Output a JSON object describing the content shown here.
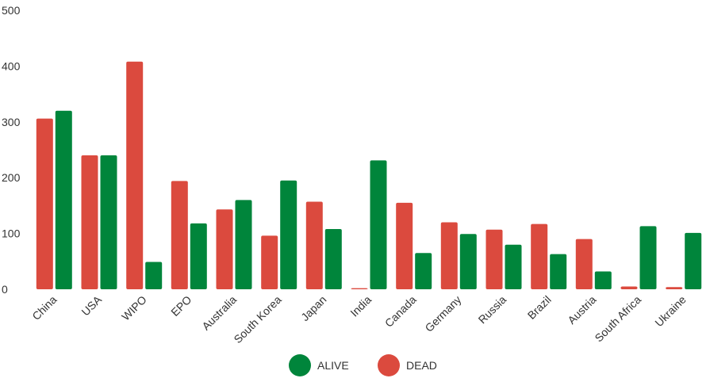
{
  "chart_data": {
    "type": "bar",
    "title": "",
    "xlabel": "",
    "ylabel": "",
    "ylim": [
      0,
      500
    ],
    "yticks": [
      0,
      100,
      200,
      300,
      400,
      500
    ],
    "grid": false,
    "legend_position": "bottom-center",
    "categories": [
      "China",
      "USA",
      "WIPO",
      "EPO",
      "Australia",
      "South Korea",
      "Japan",
      "India",
      "Canada",
      "Germany",
      "Russia",
      "Brazil",
      "Austria",
      "South Africa",
      "Ukraine"
    ],
    "series": [
      {
        "name": "DEAD",
        "color": "#db4a3e",
        "values": [
          306,
          240,
          408,
          194,
          143,
          96,
          157,
          2,
          155,
          120,
          107,
          117,
          90,
          5,
          4
        ]
      },
      {
        "name": "ALIVE",
        "color": "#00853b",
        "values": [
          320,
          240,
          49,
          118,
          160,
          195,
          108,
          231,
          65,
          99,
          80,
          63,
          32,
          113,
          101
        ]
      }
    ],
    "legend": [
      {
        "name": "ALIVE",
        "color": "#00853b"
      },
      {
        "name": "DEAD",
        "color": "#db4a3e"
      }
    ]
  }
}
